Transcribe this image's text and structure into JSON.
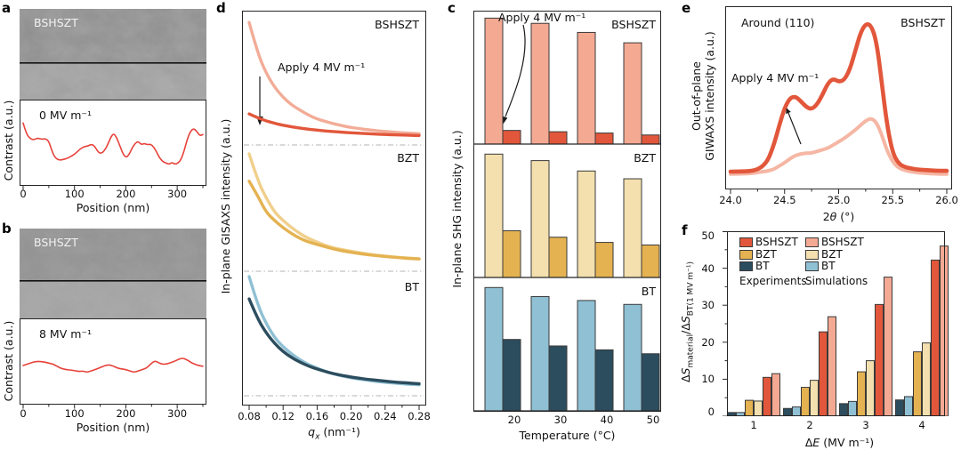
{
  "colors": {
    "red": "#E2573B",
    "salmon": "#F4A993",
    "salmon_curve": "#F2AC97",
    "giwaxs_light": "#F5B6A4",
    "gold": "#E4B251",
    "pale_yellow": "#F3E0AE",
    "gold_light": "#F0CF8B",
    "navy": "#2C4D5E",
    "light_blue": "#8FC0D4",
    "profile_red": "#E6423A",
    "axis": "#262626",
    "dash_line": "#B3B3B3",
    "bar_outline": "#3A3A3A"
  },
  "panels": {
    "a": {
      "letter": "a",
      "sample": "BSHSZT",
      "field": "0 MV m⁻¹",
      "ylabel": "Contrast (a.u.)",
      "xlabel": "Position (nm)"
    },
    "b": {
      "letter": "b",
      "sample": "BSHSZT",
      "field": "8 MV m⁻¹",
      "ylabel": "Contrast (a.u.)",
      "xlabel": "Position (nm)"
    },
    "d": {
      "letter": "d",
      "ylabel": "In-plane GISAXS intensity (a.u.)",
      "annotation": "Apply 4 MV m⁻¹",
      "xlabel_q": "q",
      "xlabel_qsub": "x",
      "xlabel_units": " (nm⁻¹)",
      "label_top": "BSHSZT",
      "label_mid": "BZT",
      "label_bot": "BT"
    },
    "c": {
      "letter": "c",
      "ylabel": "In-plane SHG intensity (a.u.)",
      "xlabel": "Temperature (°C)",
      "annotation": "Apply 4 MV m⁻¹",
      "label_top": "BSHSZT",
      "label_mid": "BZT",
      "label_bot": "BT"
    },
    "e": {
      "letter": "e",
      "title_left": "Around (110)",
      "title_right": "BSHSZT",
      "annotation": "Apply 4 MV m⁻¹",
      "ylabel_line1": "Out-of-plane",
      "ylabel_line2": "GIWAXS intensity (a.u.)",
      "xlabel_pre": "2",
      "xlabel_italic": "θ",
      "xlabel_post": " (°)"
    },
    "f": {
      "letter": "f",
      "ylabel_d1": "Δ",
      "ylabel_S1": "S",
      "ylabel_sub1": "material",
      "ylabel_d2": "/Δ",
      "ylabel_S2": "S",
      "ylabel_sub2": "BT(1 MV m⁻¹)",
      "xlabel_d": "Δ",
      "xlabel_E": "E",
      "xlabel_units": " (MV m⁻¹)"
    }
  },
  "chart_data": [
    {
      "panel": "a",
      "type": "line",
      "series_name": "contrast profile 0 MV m⁻¹",
      "xlabel": "Position (nm)",
      "ylabel": "Contrast (a.u.)",
      "xlim": [
        0,
        350
      ],
      "xticks": [
        0,
        100,
        200,
        300
      ],
      "xticks_minor": [
        50,
        150,
        250,
        350
      ],
      "x": [
        0,
        6,
        12,
        20,
        28,
        36,
        44,
        50,
        56,
        62,
        70,
        78,
        86,
        94,
        102,
        110,
        118,
        126,
        134,
        140,
        146,
        152,
        158,
        164,
        170,
        176,
        182,
        188,
        194,
        200,
        206,
        212,
        218,
        224,
        230,
        236,
        242,
        248,
        254,
        260,
        266,
        272,
        278,
        284,
        290,
        296,
        302,
        308,
        314,
        320,
        326,
        332,
        338,
        344,
        350
      ],
      "y": [
        0.85,
        0.7,
        0.63,
        0.6,
        0.63,
        0.61,
        0.62,
        0.58,
        0.44,
        0.34,
        0.3,
        0.31,
        0.33,
        0.36,
        0.4,
        0.46,
        0.5,
        0.51,
        0.54,
        0.5,
        0.42,
        0.4,
        0.44,
        0.52,
        0.63,
        0.7,
        0.64,
        0.52,
        0.4,
        0.34,
        0.38,
        0.48,
        0.55,
        0.58,
        0.53,
        0.55,
        0.53,
        0.54,
        0.5,
        0.42,
        0.33,
        0.28,
        0.26,
        0.24,
        0.27,
        0.24,
        0.26,
        0.32,
        0.45,
        0.62,
        0.73,
        0.77,
        0.73,
        0.66,
        0.68
      ]
    },
    {
      "panel": "b",
      "type": "line",
      "series_name": "contrast profile 8 MV m⁻¹",
      "xlabel": "Position (nm)",
      "ylabel": "Contrast (a.u.)",
      "xlim": [
        0,
        350
      ],
      "xticks": [
        0,
        100,
        200,
        300
      ],
      "xticks_minor": [
        50,
        150,
        250,
        350
      ],
      "x": [
        0,
        12,
        24,
        36,
        48,
        60,
        72,
        84,
        96,
        108,
        116,
        124,
        132,
        140,
        150,
        160,
        168,
        176,
        184,
        192,
        200,
        208,
        216,
        224,
        232,
        240,
        248,
        256,
        262,
        270,
        278,
        286,
        294,
        302,
        310,
        318,
        326,
        334,
        342,
        350
      ],
      "y": [
        0.5,
        0.53,
        0.56,
        0.56,
        0.54,
        0.52,
        0.46,
        0.44,
        0.43,
        0.41,
        0.42,
        0.4,
        0.42,
        0.44,
        0.47,
        0.5,
        0.51,
        0.49,
        0.46,
        0.45,
        0.44,
        0.42,
        0.4,
        0.42,
        0.44,
        0.46,
        0.52,
        0.57,
        0.55,
        0.52,
        0.52,
        0.54,
        0.56,
        0.59,
        0.61,
        0.59,
        0.55,
        0.52,
        0.5,
        0.49
      ]
    },
    {
      "panel": "d",
      "type": "line",
      "title": "In-plane GISAXS intensity (a.u.) vs qx",
      "annotation": "Apply 4 MV m⁻¹",
      "xlim": [
        0.08,
        0.28
      ],
      "xticks": [
        0.08,
        0.12,
        0.16,
        0.2,
        0.24,
        0.28
      ],
      "xticks_minor": [
        0.1,
        0.14,
        0.18,
        0.22,
        0.26
      ],
      "x": [
        0.08,
        0.09,
        0.1,
        0.11,
        0.12,
        0.13,
        0.14,
        0.15,
        0.16,
        0.17,
        0.18,
        0.19,
        0.2,
        0.21,
        0.22,
        0.23,
        0.24,
        0.25,
        0.26,
        0.27,
        0.28
      ],
      "sections": [
        {
          "label": "BSHSZT",
          "color_pristine": "salmon_curve",
          "color_applied": "red",
          "pristine": [
            0.95,
            0.71,
            0.55,
            0.44,
            0.36,
            0.3,
            0.26,
            0.22,
            0.19,
            0.17,
            0.152,
            0.137,
            0.124,
            0.114,
            0.106,
            0.098,
            0.092,
            0.087,
            0.082,
            0.078,
            0.075
          ],
          "applied": [
            0.23,
            0.2,
            0.175,
            0.156,
            0.141,
            0.129,
            0.119,
            0.11,
            0.103,
            0.096,
            0.091,
            0.086,
            0.081,
            0.078,
            0.074,
            0.071,
            0.068,
            0.066,
            0.064,
            0.062,
            0.06
          ]
        },
        {
          "label": "BZT",
          "color_pristine": "gold_light",
          "color_applied": "gold",
          "pristine": [
            0.97,
            0.75,
            0.6,
            0.48,
            0.41,
            0.35,
            0.3,
            0.26,
            0.23,
            0.2,
            0.18,
            0.166,
            0.152,
            0.14,
            0.129,
            0.12,
            0.112,
            0.105,
            0.099,
            0.094,
            0.09
          ],
          "applied": [
            0.74,
            0.62,
            0.48,
            0.41,
            0.35,
            0.3,
            0.26,
            0.23,
            0.21,
            0.19,
            0.17,
            0.156,
            0.144,
            0.133,
            0.124,
            0.116,
            0.109,
            0.103,
            0.097,
            0.092,
            0.088
          ]
        },
        {
          "label": "BT",
          "color_pristine": "light_blue",
          "color_applied": "navy",
          "pristine": [
            1.0,
            0.76,
            0.6,
            0.48,
            0.4,
            0.34,
            0.29,
            0.25,
            0.22,
            0.19,
            0.17,
            0.153,
            0.138,
            0.126,
            0.116,
            0.107,
            0.099,
            0.093,
            0.087,
            0.082,
            0.078
          ],
          "applied": [
            0.81,
            0.64,
            0.52,
            0.43,
            0.36,
            0.31,
            0.27,
            0.237,
            0.212,
            0.19,
            0.172,
            0.157,
            0.144,
            0.133,
            0.124,
            0.116,
            0.109,
            0.102,
            0.097,
            0.092,
            0.087
          ]
        }
      ]
    },
    {
      "panel": "c",
      "type": "bar",
      "title": "In-plane SHG intensity vs temperature",
      "annotation": "Apply 4 MV m⁻¹",
      "temperatures": [
        20,
        30,
        40,
        50
      ],
      "xlabel": "Temperature (°C)",
      "sections": [
        {
          "label": "BSHSZT",
          "color_pristine": "salmon",
          "color_field": "red",
          "pristine": [
            0.97,
            0.93,
            0.86,
            0.78
          ],
          "field": [
            0.105,
            0.095,
            0.085,
            0.07
          ]
        },
        {
          "label": "BZT",
          "color_pristine": "pale_yellow",
          "color_field": "gold",
          "pristine": [
            0.95,
            0.9,
            0.82,
            0.76
          ],
          "field": [
            0.36,
            0.31,
            0.27,
            0.25
          ]
        },
        {
          "label": "BT",
          "color_pristine": "light_blue",
          "color_field": "navy",
          "pristine": [
            0.95,
            0.88,
            0.85,
            0.82
          ],
          "field": [
            0.55,
            0.5,
            0.47,
            0.44
          ]
        }
      ]
    },
    {
      "panel": "e",
      "type": "line",
      "title": "Out-of-plane GIWAXS around (110), BSHSZT",
      "annotation": "Apply 4 MV m⁻¹",
      "xlim": [
        24.0,
        26.0
      ],
      "xticks": [
        24.0,
        24.5,
        25.0,
        25.5,
        26.0
      ],
      "xtick_labels": [
        "24.0",
        "24.5",
        "25.0",
        "25.5",
        "26.0"
      ],
      "xticks_minor": [
        24.25,
        24.75,
        25.25,
        25.75
      ],
      "x": [
        24.0,
        24.1,
        24.2,
        24.25,
        24.3,
        24.35,
        24.4,
        24.45,
        24.5,
        24.55,
        24.6,
        24.65,
        24.7,
        24.75,
        24.8,
        24.85,
        24.9,
        24.95,
        25.0,
        25.05,
        25.1,
        25.15,
        25.2,
        25.25,
        25.3,
        25.35,
        25.4,
        25.45,
        25.5,
        25.55,
        25.6,
        25.7,
        25.8,
        25.9,
        26.0
      ],
      "applied": [
        0.055,
        0.055,
        0.06,
        0.07,
        0.09,
        0.13,
        0.22,
        0.34,
        0.45,
        0.51,
        0.52,
        0.49,
        0.455,
        0.44,
        0.47,
        0.53,
        0.6,
        0.63,
        0.61,
        0.62,
        0.68,
        0.79,
        0.91,
        0.97,
        0.96,
        0.86,
        0.6,
        0.33,
        0.17,
        0.11,
        0.085,
        0.07,
        0.065,
        0.06,
        0.06
      ],
      "pristine": [
        0.04,
        0.04,
        0.045,
        0.05,
        0.055,
        0.06,
        0.07,
        0.09,
        0.11,
        0.135,
        0.155,
        0.165,
        0.17,
        0.17,
        0.18,
        0.19,
        0.2,
        0.22,
        0.24,
        0.26,
        0.285,
        0.31,
        0.34,
        0.37,
        0.385,
        0.36,
        0.28,
        0.18,
        0.115,
        0.08,
        0.065,
        0.05,
        0.045,
        0.04,
        0.04
      ]
    },
    {
      "panel": "f",
      "type": "bar",
      "title": "ΔS_material/ΔS_BT(1 MV m⁻¹) vs ΔE",
      "categories": [
        1,
        2,
        3,
        4
      ],
      "ylim": [
        0,
        50
      ],
      "yticks": [
        0,
        10,
        20,
        30,
        40,
        50
      ],
      "yticks_minor": [
        5,
        15,
        25,
        35,
        45
      ],
      "series": [
        {
          "name": "BT Experiments",
          "color": "navy",
          "values": [
            1.0,
            2.1,
            3.4,
            4.4
          ]
        },
        {
          "name": "BT Simulations",
          "color": "light_blue",
          "values": [
            1.0,
            2.5,
            4.0,
            5.3
          ]
        },
        {
          "name": "BZT Experiments",
          "color": "gold",
          "values": [
            4.3,
            7.8,
            12.0,
            17.4
          ]
        },
        {
          "name": "BZT Simulations",
          "color": "pale_yellow",
          "values": [
            4.1,
            9.7,
            15.0,
            19.8
          ]
        },
        {
          "name": "BSHSZT Experiments",
          "color": "red",
          "values": [
            10.5,
            22.8,
            30.2,
            42.2
          ]
        },
        {
          "name": "BSHSZT Simulations",
          "color": "salmon",
          "values": [
            11.5,
            26.9,
            37.6,
            46.0
          ]
        }
      ],
      "legend": {
        "columns": [
          {
            "title": "Experiments",
            "entries": [
              {
                "label": "BSHSZT",
                "color": "red"
              },
              {
                "label": "BZT",
                "color": "gold"
              },
              {
                "label": "BT",
                "color": "navy"
              }
            ]
          },
          {
            "title": "Simulations",
            "entries": [
              {
                "label": "BSHSZT",
                "color": "salmon"
              },
              {
                "label": "BZT",
                "color": "pale_yellow"
              },
              {
                "label": "BT",
                "color": "light_blue"
              }
            ]
          }
        ]
      }
    }
  ]
}
